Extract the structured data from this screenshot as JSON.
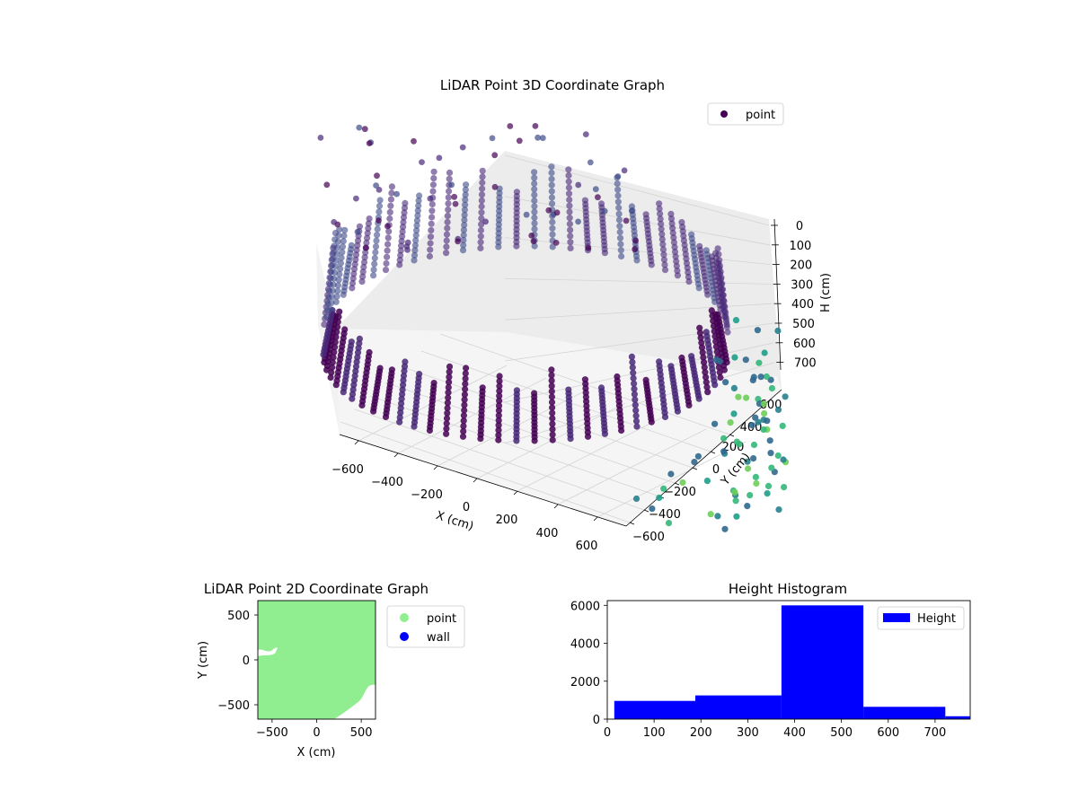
{
  "chart_data": [
    {
      "type": "scatter",
      "title": "LiDAR Point 3D Coordinate Graph",
      "xlabel": "X (cm)",
      "ylabel": "Y (cm)",
      "zlabel": "H (cm)",
      "x_ticks": [
        "−600",
        "−400",
        "−200",
        "0",
        "200",
        "400",
        "600"
      ],
      "y_ticks": [
        "−600",
        "−400",
        "−200",
        "0",
        "200",
        "400",
        "600"
      ],
      "z_ticks": [
        "0",
        "100",
        "200",
        "300",
        "400",
        "500",
        "600",
        "700"
      ],
      "xlim": [
        -650,
        650
      ],
      "ylim": [
        -650,
        650
      ],
      "zlim": [
        0,
        780
      ],
      "z_inverted": true,
      "colormap": "viridis",
      "legend": {
        "entries": [
          "point"
        ],
        "placement": "top-right"
      },
      "grid": true,
      "series": [
        {
          "name": "point",
          "description_values": "ring of wall points around the scanner, radius ≈ 620 cm, heights 0–780 cm"
        }
      ]
    },
    {
      "type": "scatter",
      "title": "LiDAR Point 2D Coordinate Graph",
      "xlabel": "X (cm)",
      "ylabel": "Y (cm)",
      "x_ticks": [
        "−500",
        "0",
        "500"
      ],
      "y_ticks": [
        "500",
        "0",
        "−500"
      ],
      "xlim": [
        -660,
        660
      ],
      "ylim": [
        -660,
        660
      ],
      "legend": {
        "entries": [
          "point",
          "wall"
        ],
        "placement": "outside-right"
      },
      "series": [
        {
          "name": "point",
          "color": "#90ee90"
        },
        {
          "name": "wall",
          "color": "#0000ff"
        }
      ]
    },
    {
      "type": "bar",
      "title": "Height Histogram",
      "x_ticks": [
        "0",
        "100",
        "200",
        "300",
        "400",
        "500",
        "600",
        "700"
      ],
      "y_ticks": [
        "0",
        "2000",
        "4000",
        "6000"
      ],
      "xlim": [
        0,
        775
      ],
      "ylim": [
        0,
        6250
      ],
      "legend": {
        "entries": [
          "Height"
        ],
        "placement": "top-right"
      },
      "series": [
        {
          "name": "Height",
          "color": "#0000ff",
          "bins": [
            {
              "from": 15,
              "to": 188,
              "count": 960
            },
            {
              "from": 188,
              "to": 372,
              "count": 1250
            },
            {
              "from": 372,
              "to": 547,
              "count": 6000
            },
            {
              "from": 547,
              "to": 722,
              "count": 650
            },
            {
              "from": 722,
              "to": 775,
              "count": 150
            }
          ]
        }
      ]
    }
  ]
}
